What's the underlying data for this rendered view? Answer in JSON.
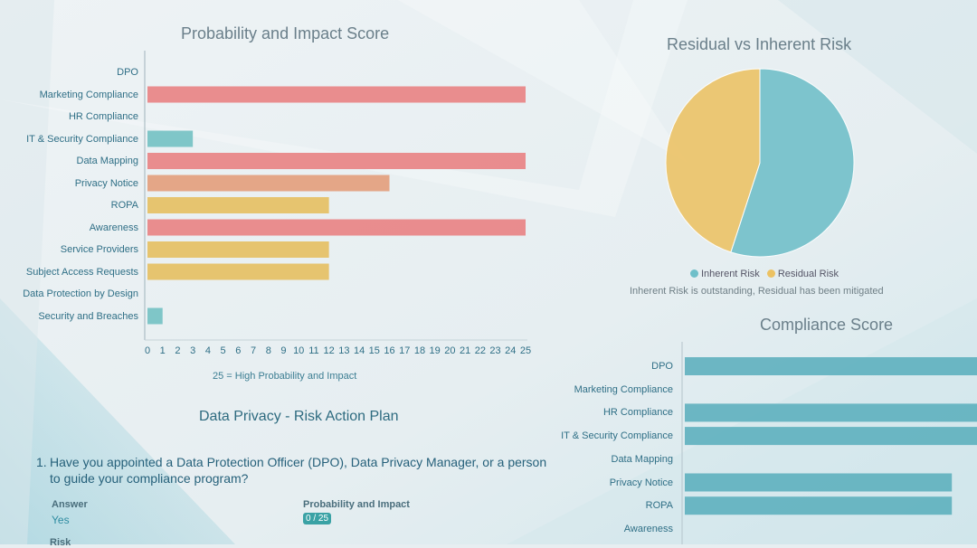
{
  "colors": {
    "high": "#e87e80",
    "medium": "#e39b78",
    "low_medium": "#e5bd5c",
    "low": "#6fbfc2",
    "inherent": "#6fbfc9",
    "residual": "#ecc263",
    "compliance_bar": "#57adbb"
  },
  "chart_data": [
    {
      "type": "bar",
      "orientation": "horizontal",
      "title": "Probability and Impact Score",
      "categories": [
        "DPO",
        "Marketing Compliance",
        "HR Compliance",
        "IT & Security Compliance",
        "Data Mapping",
        "Privacy Notice",
        "ROPA",
        "Awareness",
        "Service Providers",
        "Subject Access Requests",
        "Data Protection by Design",
        "Security and Breaches"
      ],
      "values": [
        0,
        25,
        0,
        3,
        25,
        16,
        12,
        25,
        12,
        12,
        0,
        1
      ],
      "bar_colors": [
        "high",
        "high",
        "high",
        "low",
        "high",
        "medium",
        "low_medium",
        "high",
        "low_medium",
        "low_medium",
        "high",
        "low"
      ],
      "xlim": [
        0,
        25
      ],
      "xticks": [
        0,
        1,
        2,
        3,
        4,
        5,
        6,
        7,
        8,
        9,
        10,
        11,
        12,
        13,
        14,
        15,
        16,
        17,
        18,
        19,
        20,
        21,
        22,
        23,
        24,
        25
      ],
      "xlabel": "25 = High Probability and Impact"
    },
    {
      "type": "pie",
      "title": "Residual vs Inherent Risk",
      "labels": [
        "Inherent Risk",
        "Residual Risk"
      ],
      "values": [
        55,
        45
      ],
      "legend_position": "bottom",
      "note": "Inherent Risk is outstanding, Residual has been mitigated"
    },
    {
      "type": "bar",
      "orientation": "horizontal",
      "title": "Compliance Score",
      "categories": [
        "DPO",
        "Marketing Compliance",
        "HR Compliance",
        "IT & Security Compliance",
        "Data Mapping",
        "Privacy Notice",
        "ROPA",
        "Awareness"
      ],
      "values": [
        100,
        0,
        100,
        100,
        0,
        82,
        82,
        0
      ],
      "xlim": [
        0,
        100
      ]
    }
  ],
  "plan": {
    "title": "Data Privacy - Risk Action Plan",
    "question_number": "1.",
    "question_text": "Have you appointed a Data Protection Officer (DPO), Data Privacy Manager, or a person to guide your compliance program?",
    "answer_label": "Answer",
    "answer_value": "Yes",
    "pi_label": "Probability and Impact",
    "pi_value": "0 / 25",
    "risk_label": "Risk"
  }
}
